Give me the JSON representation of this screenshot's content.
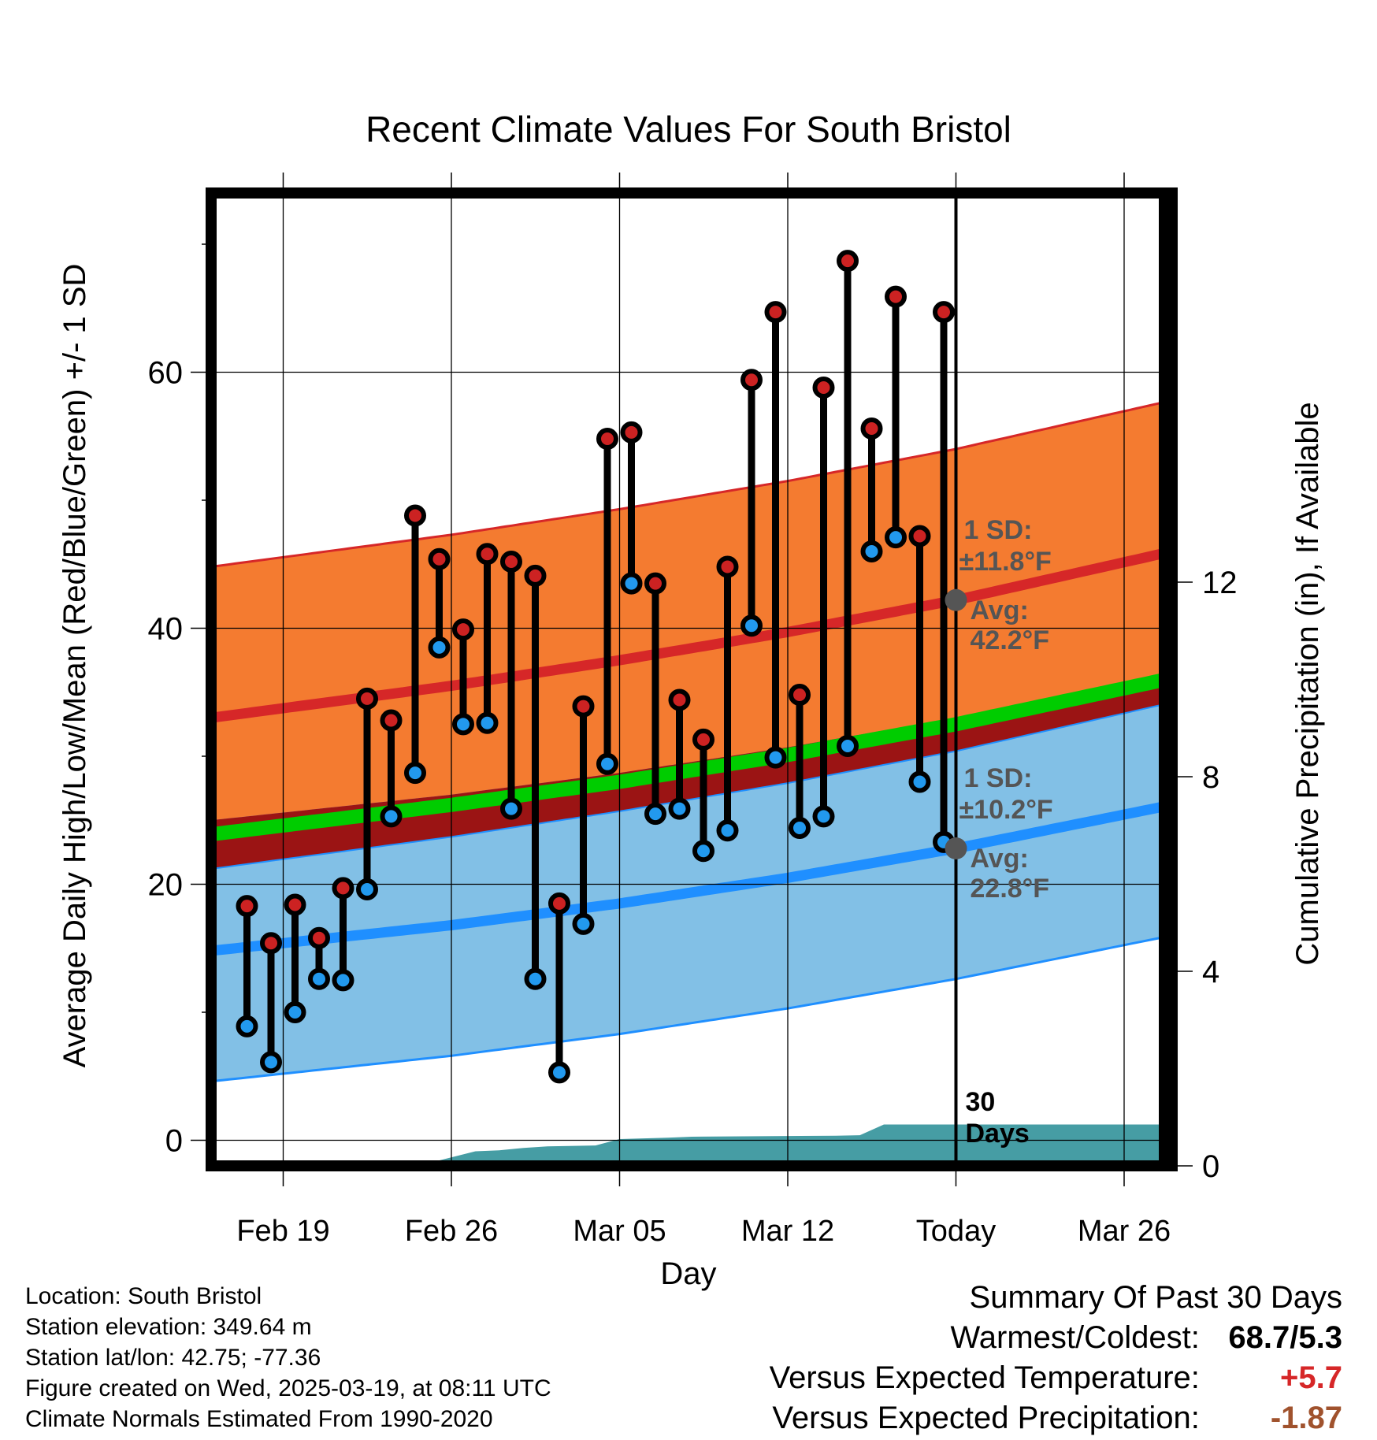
{
  "chart_data": {
    "type": "line",
    "title": "Recent Climate Values For South Bristol",
    "xlabel": "Day",
    "ylabel": "Average Daily High/Low/Mean (Red/Blue/Green) +/- 1 SD",
    "y2label": "Cumulative Precipitation (in), If Available",
    "ylim": [
      -2,
      74
    ],
    "y2lim": [
      0,
      20
    ],
    "yticks": [
      "0",
      "20",
      "40",
      "60"
    ],
    "y2ticks": [
      "0",
      "4",
      "8",
      "12"
    ],
    "xticks": [
      "Feb 19",
      "Feb 26",
      "Mar 05",
      "Mar 12",
      "Today",
      "Mar 26"
    ],
    "xlim": [
      "2025-02-16",
      "2025-03-28"
    ],
    "grid": true,
    "today": "2025-03-19",
    "today_label": [
      "30",
      "Days"
    ],
    "colors": {
      "high_band": "#f47b30",
      "high_line": "#d62728",
      "low_band": "#82c0e6",
      "low_line": "#1f8fff",
      "mean_line": "#00cc00",
      "overlap_band": "#9b1414",
      "precip": "#469da4",
      "annotation": "#555555",
      "high_marker": "#cc2222",
      "low_marker": "#2299ee"
    },
    "normals": [
      {
        "date": "2025-02-16",
        "high": 33.0,
        "low": 14.8,
        "mean": 23.9,
        "high_sd": 11.8,
        "low_sd": 10.2
      },
      {
        "date": "2025-02-26",
        "high": 35.5,
        "low": 16.8,
        "mean": 26.2,
        "high_sd": 11.8,
        "low_sd": 10.2
      },
      {
        "date": "2025-03-05",
        "high": 37.5,
        "low": 18.5,
        "mean": 28.0,
        "high_sd": 11.8,
        "low_sd": 10.2
      },
      {
        "date": "2025-03-12",
        "high": 39.7,
        "low": 20.5,
        "mean": 30.1,
        "high_sd": 11.8,
        "low_sd": 10.2
      },
      {
        "date": "2025-03-19",
        "high": 42.2,
        "low": 22.8,
        "mean": 32.5,
        "high_sd": 11.8,
        "low_sd": 10.2
      },
      {
        "date": "2025-03-28",
        "high": 46.0,
        "low": 26.2,
        "mean": 36.1,
        "high_sd": 11.8,
        "low_sd": 10.2
      }
    ],
    "observations": [
      {
        "date": "2025-02-17",
        "high": 18.3,
        "low": 8.9
      },
      {
        "date": "2025-02-18",
        "high": 15.4,
        "low": 6.1
      },
      {
        "date": "2025-02-19",
        "high": 18.4,
        "low": 10.0
      },
      {
        "date": "2025-02-20",
        "high": 15.8,
        "low": 12.6
      },
      {
        "date": "2025-02-21",
        "high": 19.7,
        "low": 12.5
      },
      {
        "date": "2025-02-22",
        "high": 34.5,
        "low": 19.6
      },
      {
        "date": "2025-02-23",
        "high": 32.8,
        "low": 25.3
      },
      {
        "date": "2025-02-24",
        "high": 48.8,
        "low": 28.7
      },
      {
        "date": "2025-02-25",
        "high": 45.4,
        "low": 38.5
      },
      {
        "date": "2025-02-26",
        "high": 39.9,
        "low": 32.5
      },
      {
        "date": "2025-02-27",
        "high": 45.8,
        "low": 32.6
      },
      {
        "date": "2025-02-28",
        "high": 45.2,
        "low": 25.9
      },
      {
        "date": "2025-03-01",
        "high": 44.1,
        "low": 12.6
      },
      {
        "date": "2025-03-02",
        "high": 18.5,
        "low": 5.3
      },
      {
        "date": "2025-03-03",
        "high": 33.9,
        "low": 16.9
      },
      {
        "date": "2025-03-04",
        "high": 54.8,
        "low": 29.4
      },
      {
        "date": "2025-03-05",
        "high": 55.3,
        "low": 43.5
      },
      {
        "date": "2025-03-06",
        "high": 43.5,
        "low": 25.5
      },
      {
        "date": "2025-03-07",
        "high": 34.4,
        "low": 25.9
      },
      {
        "date": "2025-03-08",
        "high": 31.3,
        "low": 22.6
      },
      {
        "date": "2025-03-09",
        "high": 44.8,
        "low": 24.2
      },
      {
        "date": "2025-03-10",
        "high": 59.4,
        "low": 40.2
      },
      {
        "date": "2025-03-11",
        "high": 64.7,
        "low": 29.9
      },
      {
        "date": "2025-03-12",
        "high": 34.8,
        "low": 24.4
      },
      {
        "date": "2025-03-13",
        "high": 58.8,
        "low": 25.3
      },
      {
        "date": "2025-03-14",
        "high": 68.7,
        "low": 30.8
      },
      {
        "date": "2025-03-15",
        "high": 55.6,
        "low": 46.0
      },
      {
        "date": "2025-03-16",
        "high": 65.9,
        "low": 47.1
      },
      {
        "date": "2025-03-17",
        "high": 47.2,
        "low": 28.0
      },
      {
        "date": "2025-03-18",
        "high": 64.7,
        "low": 23.3
      }
    ],
    "cumulative_precip": [
      {
        "date": "2025-02-16",
        "value": 0.0
      },
      {
        "date": "2025-02-24",
        "value": 0.0
      },
      {
        "date": "2025-02-25",
        "value": 0.05
      },
      {
        "date": "2025-02-27",
        "value": 0.3
      },
      {
        "date": "2025-02-28",
        "value": 0.32
      },
      {
        "date": "2025-03-01",
        "value": 0.37
      },
      {
        "date": "2025-03-02",
        "value": 0.4
      },
      {
        "date": "2025-03-04",
        "value": 0.42
      },
      {
        "date": "2025-03-05",
        "value": 0.55
      },
      {
        "date": "2025-03-07",
        "value": 0.58
      },
      {
        "date": "2025-03-08",
        "value": 0.6
      },
      {
        "date": "2025-03-14",
        "value": 0.62
      },
      {
        "date": "2025-03-15",
        "value": 0.63
      },
      {
        "date": "2025-03-16",
        "value": 0.85
      },
      {
        "date": "2025-03-28",
        "value": 0.85
      }
    ],
    "annotations": {
      "high": {
        "sd_label": "1 SD:",
        "sd_value": "±11.8°F",
        "avg_label": "Avg:",
        "avg_value": "42.2°F",
        "value": 42.2
      },
      "low": {
        "sd_label": "1 SD:",
        "sd_value": "±10.2°F",
        "avg_label": "Avg:",
        "avg_value": "22.8°F",
        "value": 22.8
      }
    }
  },
  "info": {
    "location": "Location: South Bristol",
    "elevation": "Station elevation: 349.64 m",
    "latlon": "Station lat/lon: 42.75; -77.36",
    "created": "Figure created on Wed, 2025-03-19, at 08:11 UTC",
    "normals": "Climate Normals Estimated From 1990-2020"
  },
  "summary": {
    "title": "Summary Of Past 30 Days",
    "warmest_label": "Warmest/Coldest:",
    "warmest_value": "68.7/5.3",
    "temp_label": "Versus Expected Temperature:",
    "temp_value": "+5.7",
    "temp_color": "#d62728",
    "precip_label": "Versus Expected Precipitation:",
    "precip_value": "-1.87",
    "precip_color": "#a0522d"
  }
}
